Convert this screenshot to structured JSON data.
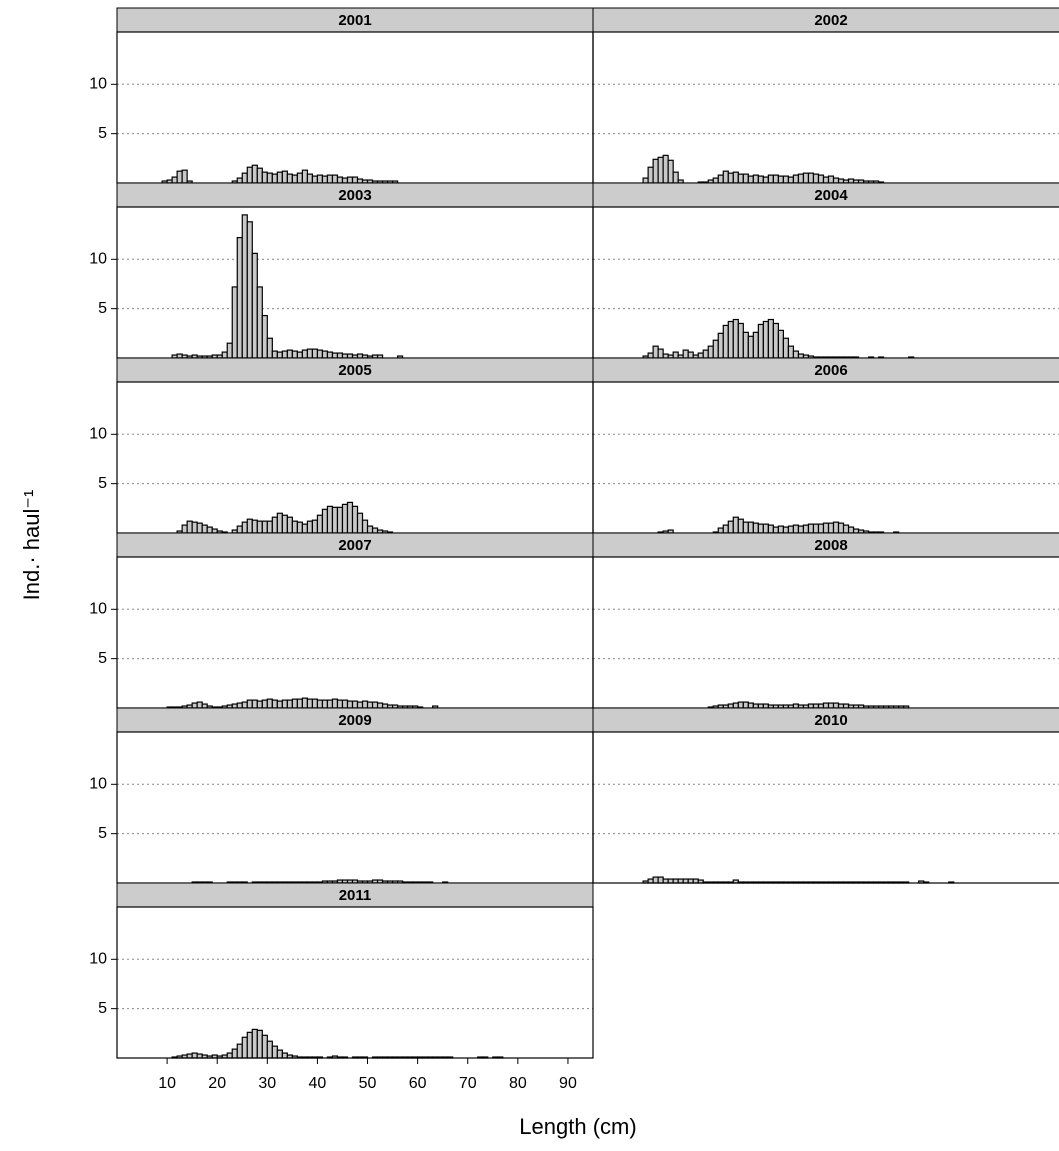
{
  "chart_data": {
    "type": "histogram",
    "x_label": "Length (cm)",
    "y_label": "Ind.· haul⁻¹",
    "xlim": [
      0,
      95
    ],
    "xticks": [
      10,
      20,
      30,
      40,
      50,
      60,
      70,
      80,
      90
    ],
    "ylim": [
      0,
      15.3
    ],
    "yticks": [
      5,
      10
    ],
    "grid": true,
    "bins": [
      8,
      9,
      10,
      11,
      12,
      13,
      14,
      15,
      16,
      17,
      18,
      19,
      20,
      21,
      22,
      23,
      24,
      25,
      26,
      27,
      28,
      29,
      30,
      31,
      32,
      33,
      34,
      35,
      36,
      37,
      38,
      39,
      40,
      41,
      42,
      43,
      44,
      45,
      46,
      47,
      48,
      49,
      50,
      51,
      52,
      53,
      54,
      55,
      56,
      57,
      58,
      59,
      60,
      61,
      62,
      63,
      64,
      65,
      66,
      67,
      68,
      69,
      70,
      71,
      72,
      73,
      74,
      75,
      76,
      77,
      78,
      79,
      80,
      81,
      82
    ],
    "series": [
      {
        "name": "2001",
        "color": "#c8c8c8",
        "values": [
          0,
          0.2,
          0.3,
          0.6,
          1.2,
          1.3,
          0.2,
          0,
          0,
          0,
          0,
          0,
          0,
          0,
          0,
          0.2,
          0.5,
          1.0,
          1.6,
          1.8,
          1.5,
          1.1,
          1.0,
          0.9,
          1.1,
          1.2,
          0.9,
          0.8,
          1.0,
          1.3,
          0.9,
          0.7,
          0.8,
          0.7,
          0.8,
          0.8,
          0.6,
          0.5,
          0.6,
          0.6,
          0.4,
          0.3,
          0.3,
          0.2,
          0.2,
          0.2,
          0.2,
          0.2,
          0,
          0,
          0,
          0,
          0,
          0,
          0,
          0,
          0,
          0,
          0,
          0,
          0,
          0,
          0,
          0,
          0,
          0,
          0,
          0,
          0,
          0,
          0,
          0,
          0,
          0
        ]
      },
      {
        "name": "2002",
        "color": "#c8c8c8",
        "values": [
          0,
          0,
          0.5,
          1.6,
          2.4,
          2.6,
          2.8,
          2.3,
          1.1,
          0.3,
          0,
          0,
          0,
          0.1,
          0.1,
          0.3,
          0.5,
          0.8,
          1.2,
          1.0,
          1.1,
          0.9,
          0.9,
          0.7,
          0.8,
          0.7,
          0.6,
          0.8,
          0.8,
          0.7,
          0.7,
          0.6,
          0.8,
          0.9,
          1.0,
          1.0,
          0.9,
          0.8,
          0.6,
          0.7,
          0.5,
          0.4,
          0.3,
          0.4,
          0.3,
          0.3,
          0.2,
          0.2,
          0.2,
          0.1,
          0,
          0,
          0,
          0,
          0,
          0,
          0,
          0,
          0,
          0,
          0,
          0,
          0,
          0,
          0,
          0,
          0,
          0,
          0,
          0,
          0,
          0,
          0,
          0
        ]
      },
      {
        "name": "2003",
        "color": "#c8c8c8",
        "values": [
          0,
          0,
          0,
          0.3,
          0.4,
          0.3,
          0.2,
          0.3,
          0.2,
          0.2,
          0.2,
          0.3,
          0.3,
          0.6,
          1.5,
          7.2,
          12.2,
          14.5,
          13.8,
          10.6,
          7.2,
          4.3,
          2.0,
          0.7,
          0.6,
          0.7,
          0.8,
          0.7,
          0.6,
          0.8,
          0.9,
          0.9,
          0.8,
          0.7,
          0.6,
          0.5,
          0.5,
          0.4,
          0.4,
          0.3,
          0.4,
          0.3,
          0.2,
          0.3,
          0.3,
          0,
          0,
          0,
          0.2,
          0,
          0,
          0,
          0,
          0,
          0,
          0,
          0,
          0,
          0,
          0,
          0,
          0,
          0,
          0,
          0,
          0,
          0,
          0,
          0,
          0,
          0,
          0,
          0,
          0
        ]
      },
      {
        "name": "2004",
        "color": "#c8c8c8",
        "values": [
          0,
          0,
          0.2,
          0.5,
          1.2,
          0.9,
          0.4,
          0.3,
          0.6,
          0.3,
          0.8,
          0.6,
          0.3,
          0.5,
          0.8,
          1.2,
          1.8,
          2.5,
          3.3,
          3.7,
          3.9,
          3.5,
          2.6,
          2.2,
          2.6,
          3.4,
          3.7,
          3.9,
          3.5,
          2.8,
          2.0,
          1.2,
          0.7,
          0.4,
          0.3,
          0.2,
          0.1,
          0.1,
          0.1,
          0.1,
          0.1,
          0.1,
          0.1,
          0.1,
          0.1,
          0,
          0,
          0.1,
          0,
          0.1,
          0,
          0,
          0,
          0,
          0,
          0.1,
          0,
          0,
          0,
          0,
          0,
          0,
          0,
          0,
          0,
          0,
          0,
          0,
          0,
          0,
          0,
          0,
          0,
          0
        ]
      },
      {
        "name": "2005",
        "color": "#c8c8c8",
        "values": [
          0,
          0,
          0,
          0,
          0.2,
          0.8,
          1.2,
          1.1,
          1.0,
          0.8,
          0.6,
          0.4,
          0.2,
          0.1,
          0,
          0.3,
          0.7,
          1.1,
          1.4,
          1.3,
          1.2,
          1.2,
          1.2,
          1.6,
          2.0,
          1.8,
          1.6,
          1.2,
          1.1,
          0.9,
          1.2,
          1.3,
          1.8,
          2.4,
          2.7,
          2.6,
          2.6,
          2.9,
          3.1,
          2.7,
          2.0,
          1.3,
          0.7,
          0.5,
          0.3,
          0.2,
          0.1,
          0,
          0,
          0,
          0,
          0,
          0,
          0,
          0,
          0,
          0,
          0,
          0,
          0,
          0,
          0,
          0,
          0,
          0,
          0,
          0,
          0,
          0,
          0,
          0,
          0,
          0,
          0
        ]
      },
      {
        "name": "2006",
        "color": "#c8c8c8",
        "values": [
          0,
          0,
          0,
          0,
          0,
          0.1,
          0.2,
          0.3,
          0,
          0,
          0,
          0,
          0,
          0,
          0,
          0,
          0.1,
          0.5,
          0.8,
          1.2,
          1.6,
          1.4,
          1.1,
          1.1,
          1.0,
          0.9,
          0.9,
          0.8,
          0.6,
          0.7,
          0.6,
          0.7,
          0.8,
          0.7,
          0.8,
          0.9,
          0.9,
          0.9,
          1.0,
          1.0,
          1.1,
          1.0,
          0.8,
          0.6,
          0.4,
          0.3,
          0.2,
          0.1,
          0.1,
          0.1,
          0,
          0,
          0.1,
          0,
          0,
          0,
          0,
          0,
          0,
          0,
          0,
          0,
          0,
          0,
          0,
          0,
          0,
          0,
          0,
          0,
          0,
          0,
          0,
          0
        ]
      },
      {
        "name": "2007",
        "color": "#c8c8c8",
        "values": [
          0,
          0,
          0.1,
          0.1,
          0.1,
          0.2,
          0.3,
          0.5,
          0.6,
          0.4,
          0.2,
          0.1,
          0.1,
          0.2,
          0.3,
          0.4,
          0.5,
          0.6,
          0.8,
          0.8,
          0.7,
          0.8,
          0.9,
          0.8,
          0.7,
          0.8,
          0.8,
          0.9,
          0.9,
          1.0,
          0.9,
          0.9,
          0.8,
          0.8,
          0.8,
          0.9,
          0.8,
          0.8,
          0.7,
          0.7,
          0.6,
          0.7,
          0.6,
          0.6,
          0.5,
          0.4,
          0.3,
          0.3,
          0.2,
          0.2,
          0.2,
          0.2,
          0.1,
          0,
          0,
          0.2,
          0,
          0,
          0,
          0,
          0,
          0,
          0,
          0,
          0,
          0,
          0,
          0,
          0,
          0,
          0,
          0,
          0,
          0
        ]
      },
      {
        "name": "2008",
        "color": "#c8c8c8",
        "values": [
          0,
          0,
          0,
          0,
          0,
          0,
          0,
          0,
          0,
          0,
          0,
          0,
          0,
          0,
          0,
          0.1,
          0.2,
          0.3,
          0.3,
          0.4,
          0.5,
          0.6,
          0.6,
          0.5,
          0.4,
          0.4,
          0.4,
          0.3,
          0.3,
          0.3,
          0.3,
          0.3,
          0.4,
          0.3,
          0.3,
          0.4,
          0.4,
          0.4,
          0.5,
          0.5,
          0.5,
          0.4,
          0.4,
          0.3,
          0.3,
          0.3,
          0.2,
          0.2,
          0.2,
          0.2,
          0.2,
          0.2,
          0.2,
          0.2,
          0.2,
          0,
          0,
          0,
          0,
          0,
          0,
          0,
          0,
          0,
          0,
          0,
          0,
          0,
          0,
          0,
          0,
          0,
          0,
          0
        ]
      },
      {
        "name": "2009",
        "color": "#c8c8c8",
        "values": [
          0,
          0,
          0,
          0,
          0,
          0,
          0,
          0.1,
          0.1,
          0.1,
          0.1,
          0,
          0,
          0,
          0.1,
          0.1,
          0.1,
          0.1,
          0,
          0.1,
          0.1,
          0.1,
          0.1,
          0.1,
          0.1,
          0.1,
          0.1,
          0.1,
          0.1,
          0.1,
          0.1,
          0.1,
          0.1,
          0.2,
          0.2,
          0.2,
          0.3,
          0.3,
          0.3,
          0.3,
          0.2,
          0.2,
          0.2,
          0.3,
          0.3,
          0.2,
          0.2,
          0.2,
          0.2,
          0.1,
          0.1,
          0.1,
          0.1,
          0.1,
          0.1,
          0,
          0,
          0.1,
          0,
          0,
          0,
          0,
          0,
          0,
          0,
          0,
          0,
          0,
          0,
          0,
          0,
          0,
          0,
          0
        ]
      },
      {
        "name": "2010",
        "color": "#c8c8c8",
        "values": [
          0,
          0,
          0.2,
          0.4,
          0.6,
          0.6,
          0.4,
          0.4,
          0.4,
          0.4,
          0.4,
          0.4,
          0.4,
          0.3,
          0.1,
          0.1,
          0.1,
          0.1,
          0.1,
          0.1,
          0.3,
          0.1,
          0.1,
          0.1,
          0.1,
          0.1,
          0.1,
          0.1,
          0.1,
          0.1,
          0.1,
          0.1,
          0.1,
          0.1,
          0.1,
          0.1,
          0.1,
          0.1,
          0.1,
          0.1,
          0.1,
          0.1,
          0.1,
          0.1,
          0.1,
          0.1,
          0.1,
          0.1,
          0.1,
          0.1,
          0.1,
          0.1,
          0.1,
          0.1,
          0.1,
          0,
          0,
          0.2,
          0.1,
          0,
          0,
          0,
          0,
          0.1,
          0,
          0,
          0,
          0,
          0,
          0,
          0,
          0,
          0,
          0
        ]
      },
      {
        "name": "2011",
        "color": "#c8c8c8",
        "values": [
          0,
          0,
          0,
          0.1,
          0.2,
          0.3,
          0.4,
          0.5,
          0.4,
          0.3,
          0.2,
          0.3,
          0.2,
          0.3,
          0.5,
          0.9,
          1.4,
          2.1,
          2.6,
          2.9,
          2.8,
          2.3,
          1.7,
          1.2,
          0.8,
          0.5,
          0.3,
          0.2,
          0.1,
          0.1,
          0.1,
          0.1,
          0.1,
          0,
          0.1,
          0.2,
          0.1,
          0.1,
          0,
          0.1,
          0.1,
          0.1,
          0,
          0.1,
          0.1,
          0.1,
          0.1,
          0.1,
          0.1,
          0.1,
          0.1,
          0.1,
          0.1,
          0.1,
          0.1,
          0.1,
          0.1,
          0.1,
          0.1,
          0,
          0,
          0,
          0,
          0,
          0.1,
          0.1,
          0,
          0.1,
          0.1,
          0,
          0,
          0,
          0,
          0
        ]
      }
    ]
  }
}
